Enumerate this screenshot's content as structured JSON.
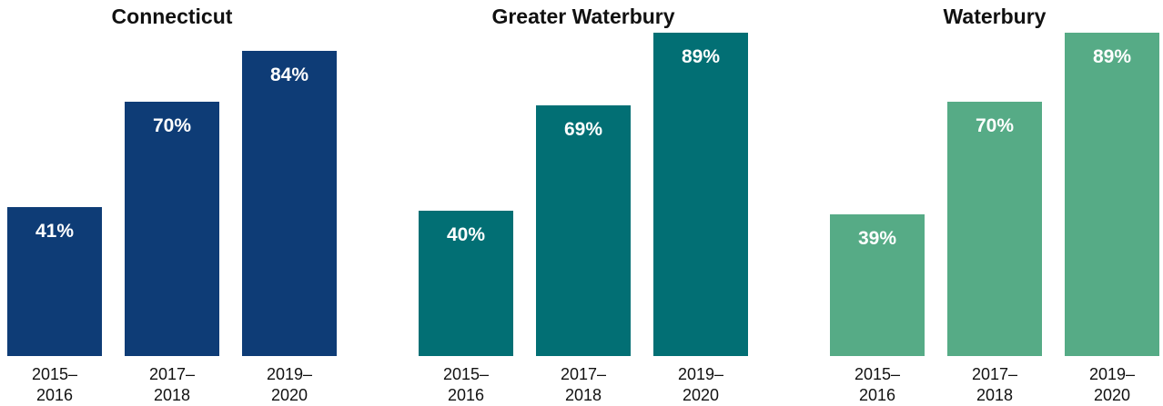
{
  "chart_data": [
    {
      "type": "bar",
      "title": "Connecticut",
      "categories": [
        "2015–\n2016",
        "2017–\n2018",
        "2019–\n2020"
      ],
      "values": [
        41,
        70,
        84
      ],
      "value_labels": [
        "41%",
        "70%",
        "84%"
      ],
      "ylim": [
        0,
        100
      ],
      "grid": false,
      "color": "#0e3c76"
    },
    {
      "type": "bar",
      "title": "Greater Waterbury",
      "categories": [
        "2015–\n2016",
        "2017–\n2018",
        "2019–\n2020"
      ],
      "values": [
        40,
        69,
        89
      ],
      "value_labels": [
        "40%",
        "69%",
        "89%"
      ],
      "ylim": [
        0,
        100
      ],
      "grid": false,
      "color": "#026f74"
    },
    {
      "type": "bar",
      "title": "Waterbury",
      "categories": [
        "2015–\n2016",
        "2017–\n2018",
        "2019–\n2020"
      ],
      "values": [
        39,
        70,
        89
      ],
      "value_labels": [
        "39%",
        "70%",
        "89%"
      ],
      "ylim": [
        0,
        100
      ],
      "grid": false,
      "color": "#56ab86"
    }
  ]
}
